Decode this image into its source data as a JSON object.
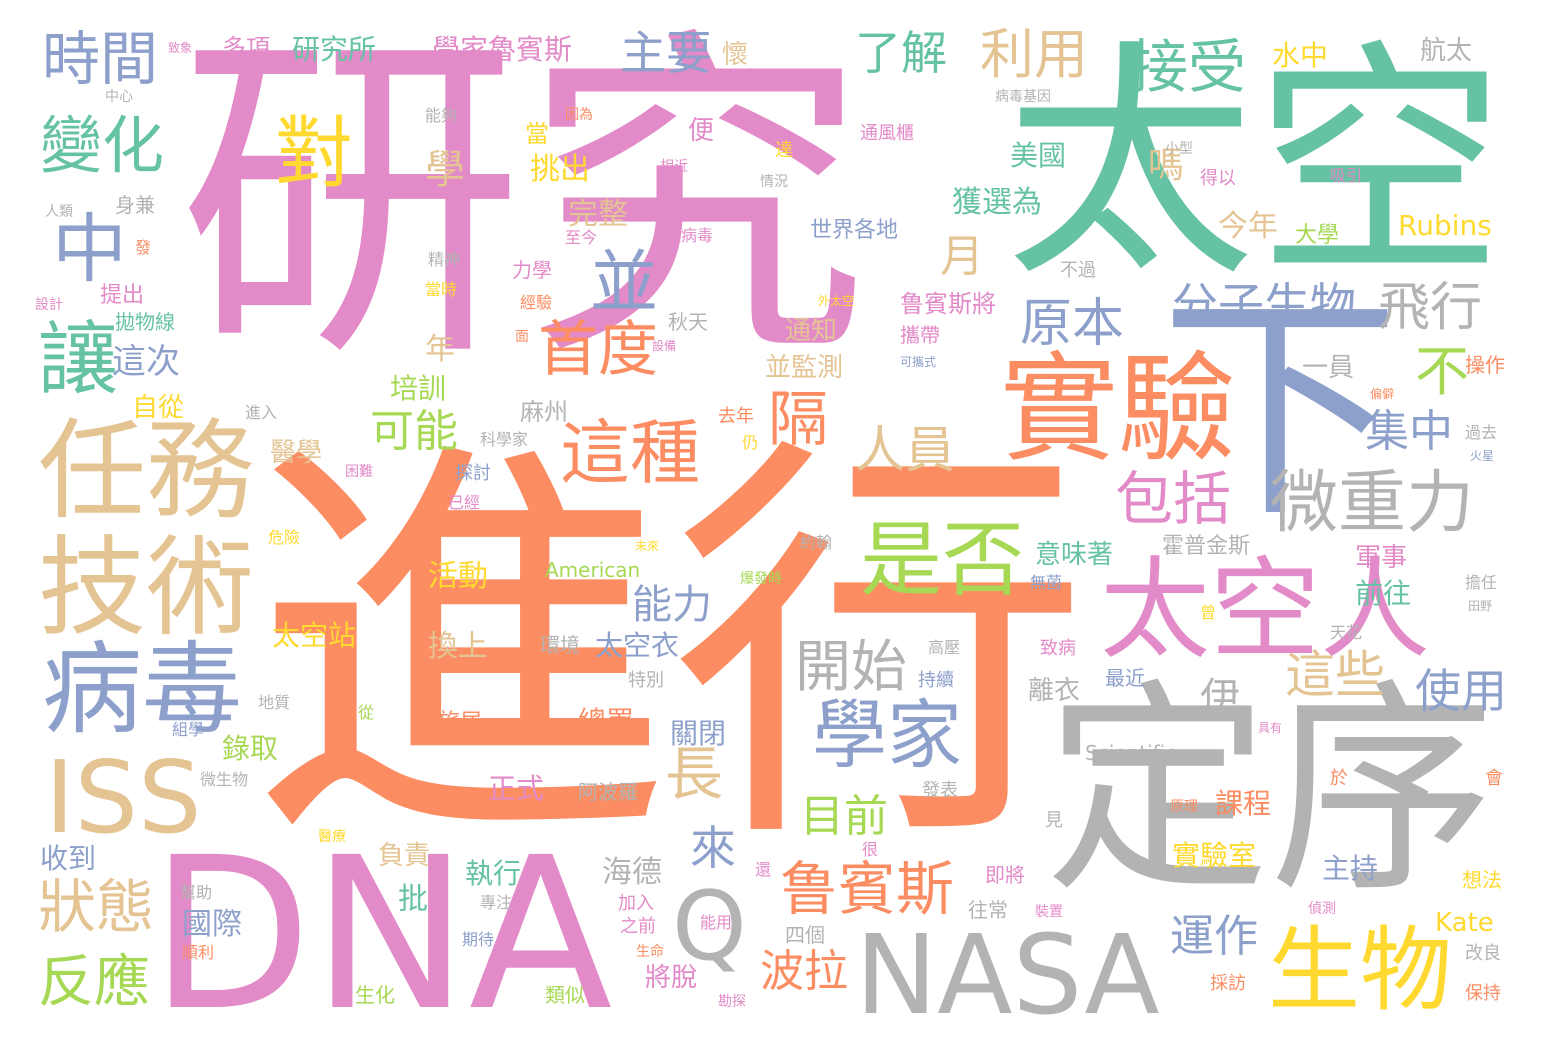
{
  "palette": {
    "pink": "#e38ac8",
    "green": "#66c2a5",
    "orange": "#fc8d62",
    "blue": "#8da0cb",
    "lime": "#a6d854",
    "yellow": "#ffd92f",
    "tan": "#e5c494",
    "gray": "#b3b3b3",
    "background": "#ffffff"
  },
  "words": {
    "w001": "研究",
    "w002": "進行",
    "w003": "太空",
    "w004": "DNA",
    "w005": "定序",
    "w006": "NASA",
    "w007": "下",
    "w008": "實驗",
    "w009": "太空人",
    "w010": "任務",
    "w011": "技術",
    "w012": "病毒",
    "w013": "ISS",
    "w014": "生物",
    "w015": "是否",
    "w016": "Q",
    "w017": "學家",
    "w018": "鲁賓斯",
    "w019": "微重力",
    "w020": "變化",
    "w021": "時間",
    "w022": "中",
    "w023": "讓",
    "w024": "對",
    "w025": "接受",
    "w026": "利用",
    "w027": "主要",
    "w028": "了解",
    "w029": "這種",
    "w030": "首度",
    "w031": "並",
    "w032": "隔",
    "w033": "包括",
    "w034": "原本",
    "w035": "分子生物",
    "w036": "飛行",
    "w037": "開始",
    "w038": "能力",
    "w039": "狀態",
    "w040": "反應",
    "w041": "長",
    "w042": "來",
    "w043": "這些",
    "w044": "使用",
    "w045": "人員",
    "w046": "集中",
    "w047": "可能",
    "w048": "不",
    "w049": "月",
    "w050": "目前",
    "w051": "波拉",
    "w052": "運作",
    "w053": "研究所",
    "w054": "學家魯賓斯",
    "w055": "多項",
    "w056": "航太",
    "w057": "水中",
    "w058": "懷",
    "w059": "學",
    "w060": "挑出",
    "w061": "完整",
    "w062": "嗎",
    "w063": "美國",
    "w064": "獲選為",
    "w065": "今年",
    "w066": "Rubins",
    "w067": "大學",
    "w068": "世界各地",
    "w069": "這次",
    "w070": "自從",
    "w071": "年",
    "w072": "培訓",
    "w073": "醫學",
    "w074": "麻州",
    "w075": "通知",
    "w076": "並監測",
    "w077": "秋天",
    "w078": "鲁賓斯將",
    "w079": "一員",
    "w080": "操作",
    "w081": "伊",
    "w082": "前往",
    "w083": "軍事",
    "w084": "意味著",
    "w085": "霍普金斯",
    "w086": "太空站",
    "w087": "活動",
    "w088": "American",
    "w089": "換上",
    "w090": "太空衣",
    "w091": "環境",
    "w092": "特別",
    "w093": "離衣",
    "w094": "最近",
    "w095": "錄取",
    "w096": "總署",
    "w097": "關閉",
    "w098": "旅居",
    "w099": "Scientific",
    "w100": "正式",
    "w101": "阿波羅",
    "w102": "課程",
    "w103": "實驗室",
    "w104": "主持",
    "w105": "收到",
    "w106": "負責",
    "w107": "執行",
    "w108": "海德",
    "w109": "國際",
    "w110": "批",
    "w111": "將脫",
    "w112": "四個",
    "w113": "往常",
    "w114": "Kate",
    "w115": "想法",
    "w116": "改良",
    "w117": "保持",
    "w118": "生化",
    "w119": "類似",
    "w120": "能用",
    "w121": "中心",
    "w122": "人類",
    "w123": "身兼",
    "w124": "設計",
    "w125": "提出",
    "w126": "拋物線",
    "w127": "精神",
    "w128": "至今",
    "w129": "力學",
    "w130": "當時",
    "w131": "經驗",
    "w132": "外太空",
    "w133": "攜帶",
    "w134": "可攜式",
    "w135": "不過",
    "w136": "小型",
    "w137": "得以",
    "w138": "吸引",
    "w139": "病毒基因",
    "w140": "通風櫃",
    "w141": "便",
    "w142": "達",
    "w143": "情況",
    "w144": "相近",
    "w145": "當",
    "w146": "因為",
    "w147": "能夠",
    "w148": "進入",
    "w149": "科學家",
    "w150": "去年",
    "w151": "仍",
    "w152": "探討",
    "w153": "已經",
    "w154": "困難",
    "w155": "危險",
    "w156": "未來",
    "w157": "約翰",
    "w158": "爆發時",
    "w159": "無菌",
    "w160": "擔任",
    "w161": "田野",
    "w162": "過去",
    "w163": "火星",
    "w164": "偏僻",
    "w165": "曾",
    "w166": "天花",
    "w167": "高壓",
    "w168": "致病",
    "w169": "持續",
    "w170": "地質",
    "w171": "組學",
    "w172": "從",
    "w173": "微生物",
    "w174": "發表",
    "w175": "具有",
    "w176": "於",
    "w177": "會",
    "w178": "原理",
    "w179": "見",
    "w180": "很",
    "w181": "醫療",
    "w182": "還",
    "w183": "即將",
    "w184": "幫助",
    "w185": "專注",
    "w186": "加入",
    "w187": "之前",
    "w188": "生命",
    "w189": "期待",
    "w190": "順利",
    "w191": "裝置",
    "w192": "偵測",
    "w193": "採訪",
    "w194": "勘探",
    "w195": "瘟病毒",
    "w196": "設備",
    "w197": "面",
    "w198": "發",
    "w199": "致象",
    "w200": "使",
    "w201": "設"
  }
}
